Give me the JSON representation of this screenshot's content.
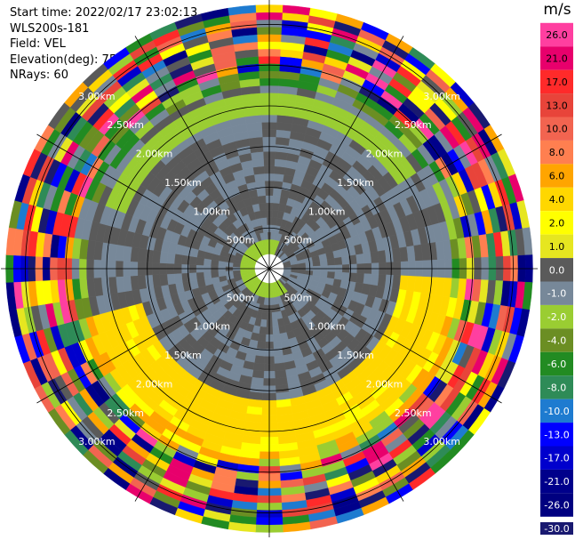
{
  "header": {
    "start_time": "Start time: 2022/02/17 23:02:13",
    "instrument": "WLS200s-181",
    "field": "Field: VEL",
    "elevation": "Elevation(deg): 75.00",
    "nrays": "NRays: 60"
  },
  "chart_data": {
    "type": "heatmap",
    "projection": "polar",
    "title": "",
    "rays": 60,
    "range_rings": [
      "500m",
      "1.00km",
      "1.50km",
      "2.00km",
      "2.50km",
      "3.00km"
    ],
    "colorbar": {
      "unit": "m/s",
      "range": [
        -30.0,
        30.0
      ],
      "tick_labels": [
        "26.0",
        "21.0",
        "17.0",
        "13.0",
        "10.0",
        "8.0",
        "6.0",
        "4.0",
        "2.0",
        "1.0",
        "0.0",
        "-1.0",
        "-2.0",
        "-4.0",
        "-6.0",
        "-8.0",
        "-10.0",
        "-13.0",
        "-17.0",
        "-21.0",
        "-26.0",
        "-30.0"
      ],
      "colors": [
        "#ff3fa0",
        "#e8006c",
        "#ff2a2a",
        "#e8443a",
        "#f26450",
        "#ff7f50",
        "#ffa500",
        "#ffd700",
        "#ffff00",
        "#e6e620",
        "#5a5a5a",
        "#778899",
        "#9acd32",
        "#6b8e23",
        "#228b22",
        "#2e8b57",
        "#1e7bd0",
        "#0000ff",
        "#0000cd",
        "#00008b",
        "#000080",
        "#191970"
      ]
    },
    "velocity_pattern": "Near-zero velocities (grey) within ~2 km; gate-to-gate noise with full color range beyond ~2.3 km; positive band (yellow) at 1.5–2.2 km on the south side"
  }
}
